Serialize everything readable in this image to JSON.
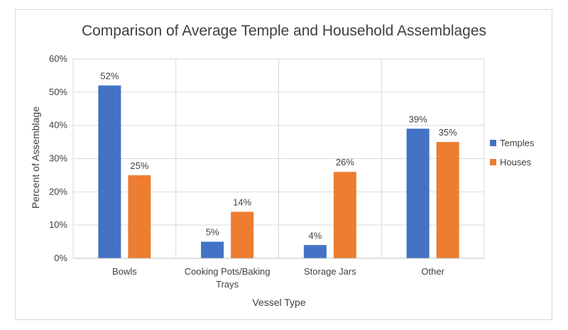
{
  "chart_data": {
    "type": "bar",
    "title": "Comparison of Average Temple and Household Assemblages",
    "xlabel": "Vessel Type",
    "ylabel": "Percent of Assemblage",
    "categories": [
      [
        "Bowls"
      ],
      [
        "Cooking Pots/Baking",
        "Trays"
      ],
      [
        "Storage Jars"
      ],
      [
        "Other"
      ]
    ],
    "series": [
      {
        "name": "Temples",
        "color": "#4472c4",
        "values": [
          52,
          5,
          4,
          39
        ],
        "labels": [
          "52%",
          "5%",
          "4%",
          "39%"
        ]
      },
      {
        "name": "Houses",
        "color": "#ed7d31",
        "values": [
          25,
          14,
          26,
          35
        ],
        "labels": [
          "25%",
          "14%",
          "26%",
          "35%"
        ]
      }
    ],
    "ylim": [
      0,
      60
    ],
    "yticks": [
      0,
      10,
      20,
      30,
      40,
      50,
      60
    ],
    "ytick_labels": [
      "0%",
      "10%",
      "20%",
      "30%",
      "40%",
      "50%",
      "60%"
    ],
    "grid": true,
    "legend_position": "right"
  }
}
